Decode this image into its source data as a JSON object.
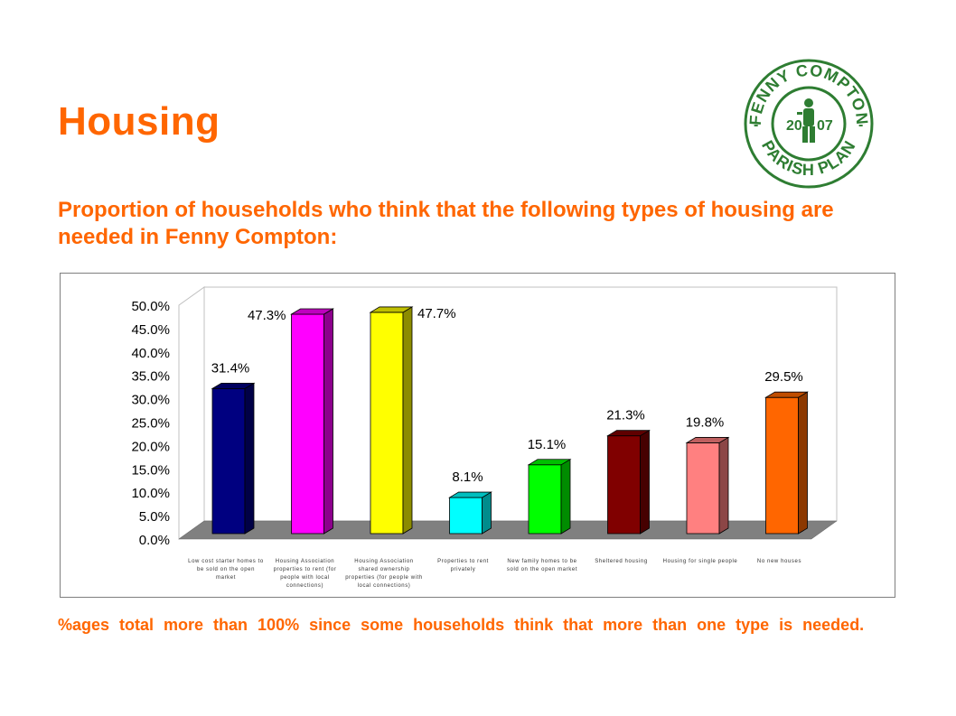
{
  "header": {
    "title": "Housing",
    "subtitle": "Proportion of households who think that the following types of housing are needed in Fenny Compton:"
  },
  "footnote": "%ages total more than 100% since some households think that more than one type is needed.",
  "logo": {
    "top_text": "FENNY COMPTON",
    "bottom_text": "PARISH PLAN",
    "year_left": "20",
    "year_right": "07",
    "color": "#2e7d32"
  },
  "colors": {
    "accent": "#ff6600"
  },
  "chart_data": {
    "type": "bar",
    "categories": [
      "Low cost starter homes to be sold on the open market",
      "Housing Association properties to rent (for people with local connections)",
      "Housing Association shared ownership properties (for people with local connections)",
      "Properties to rent privately",
      "New family homes to be sold on the open market",
      "Sheltered housing",
      "Housing for single people",
      "No new houses"
    ],
    "values": [
      31.4,
      47.3,
      47.7,
      8.1,
      15.1,
      21.3,
      19.8,
      29.5
    ],
    "data_labels": [
      "31.4%",
      "47.3%",
      "47.7%",
      "8.1%",
      "15.1%",
      "21.3%",
      "19.8%",
      "29.5%"
    ],
    "bar_colors": [
      "#000080",
      "#ff00ff",
      "#ffff00",
      "#00ffff",
      "#00ff00",
      "#800000",
      "#ff8080",
      "#ff6600"
    ],
    "ylim": [
      0,
      50
    ],
    "yticks": [
      "0.0%",
      "5.0%",
      "10.0%",
      "15.0%",
      "20.0%",
      "25.0%",
      "30.0%",
      "35.0%",
      "40.0%",
      "45.0%",
      "50.0%"
    ],
    "grid": false,
    "legend": "none",
    "style": "3d"
  }
}
